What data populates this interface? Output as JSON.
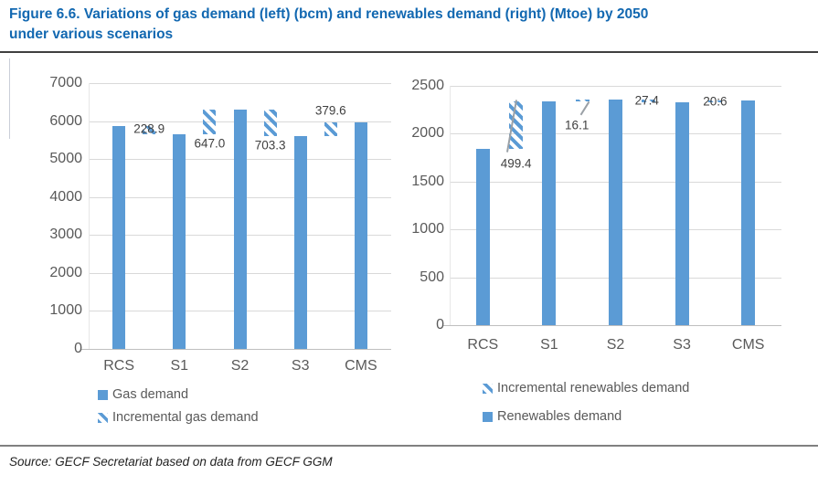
{
  "figure": {
    "title_line1": "Figure 6.6. Variations of gas demand (left) (bcm) and renewables demand (right) (Mtoe) by 2050",
    "title_line2": "under various scenarios",
    "source": "Source: GECF Secretariat based on data from GECF GGM"
  },
  "colors": {
    "title_blue": "#1268B1",
    "bar_blue": "#5B9BD5",
    "gridline": "#D9D9D9",
    "zero_axis": "#BFBFBF",
    "axis_text": "#595959",
    "data_label_text": "#404040",
    "divider_dark": "#3f3f3f",
    "divider_gray": "#808080",
    "connector_gray": "#9aa0a6"
  },
  "chart_data": [
    {
      "type": "bar",
      "unit": "bcm",
      "categories": [
        "RCS",
        "S1",
        "S2",
        "S3",
        "CMS"
      ],
      "series": [
        {
          "name": "Gas demand",
          "values": [
            5880,
            5651,
            6298,
            5595,
            5975
          ]
        }
      ],
      "incremental_series": {
        "name": "Incremental gas demand",
        "values": [
          228.9,
          647.0,
          703.3,
          379.6
        ],
        "labels": [
          "228.9",
          "647.0",
          "703.3",
          "379.6"
        ]
      },
      "ylim": [
        0,
        7000
      ],
      "ytick_step": 1000,
      "grid": true,
      "legend_position": "bottom-left",
      "legend": [
        {
          "label": "Gas demand",
          "marker": "solid"
        },
        {
          "label": "Incremental gas demand",
          "marker": "hatched"
        }
      ]
    },
    {
      "type": "bar",
      "unit": "Mtoe",
      "categories": [
        "RCS",
        "S1",
        "S2",
        "S3",
        "CMS"
      ],
      "series": [
        {
          "name": "Renewables demand",
          "values": [
            1843,
            2342,
            2358,
            2331,
            2352
          ]
        }
      ],
      "incremental_series": {
        "name": "Incremental renewables demand",
        "values": [
          499.4,
          16.1,
          27.4,
          20.6
        ],
        "labels": [
          "499.4",
          "16.1",
          "27.4",
          "20:6"
        ]
      },
      "ylim": [
        0,
        2500
      ],
      "ytick_step": 500,
      "grid": true,
      "legend_position": "bottom-left",
      "legend": [
        {
          "label": "Incremental renewables demand",
          "marker": "hatched"
        },
        {
          "label": "Renewables demand",
          "marker": "solid"
        }
      ]
    }
  ]
}
